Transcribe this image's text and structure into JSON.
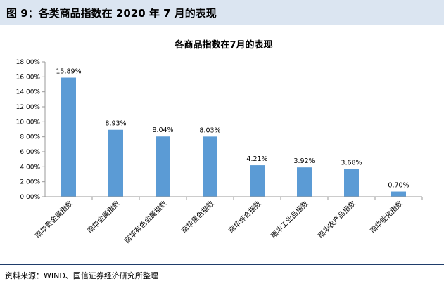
{
  "figure_label": "图 9：各类商品指数在 2020 年 7 月的表现",
  "source_note": "资料来源：WIND、国信证券经济研究所整理",
  "chart_data": {
    "type": "bar",
    "title": "各商品指数在7月的表现",
    "xlabel": "",
    "ylabel": "",
    "categories": [
      "南华贵金属指数",
      "南华金属指数",
      "南华有色金属指数",
      "南华黑色指数",
      "南华综合指数",
      "南华工业品指数",
      "南华农产品指数",
      "南华能化指数"
    ],
    "values": [
      15.89,
      8.93,
      8.04,
      8.03,
      4.21,
      3.92,
      3.68,
      0.7
    ],
    "data_labels": [
      "15.89%",
      "8.93%",
      "8.04%",
      "8.03%",
      "4.21%",
      "3.92%",
      "3.68%",
      "0.70%"
    ],
    "y_ticks": [
      "0.00%",
      "2.00%",
      "4.00%",
      "6.00%",
      "8.00%",
      "10.00%",
      "12.00%",
      "14.00%",
      "16.00%",
      "18.00%"
    ],
    "ylim": [
      0,
      18
    ],
    "grid": false,
    "legend": "none",
    "bar_color": "#5b9bd5"
  }
}
